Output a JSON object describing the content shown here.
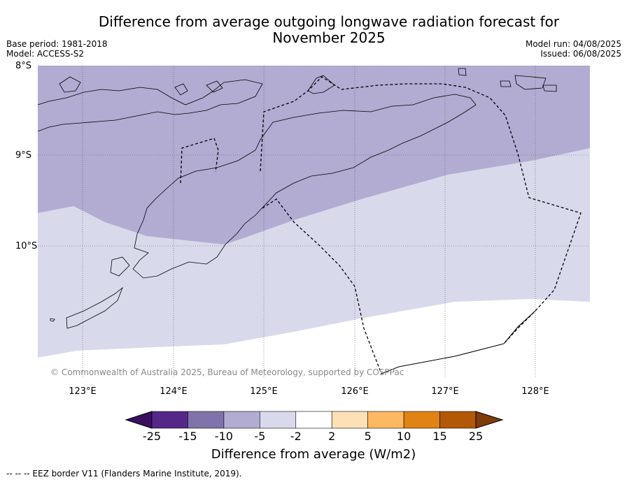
{
  "title": "Difference from average outgoing longwave radiation forecast for November 2025",
  "base_period": "Base period: 1981-2018",
  "model": "Model: ACCESS-S2",
  "model_run": "Model run: 04/08/2025",
  "issued": "Issued: 06/08/2025",
  "copyright": "© Commonwealth of Australia 2025, Bureau of Meteorology, supported by COSPPac",
  "footnote": "--  --  -- EEZ border V11 (Flanders Marine Institute, 2019).",
  "colorbar": {
    "title": "Difference from average (W/m2)",
    "tick_labels": [
      "-25",
      "-15",
      "-10",
      "-5",
      "-2",
      "2",
      "5",
      "10",
      "15",
      "25"
    ],
    "colors": [
      "#3b1060",
      "#542788",
      "#8073ac",
      "#b2abd2",
      "#d8daeb",
      "#ffffff",
      "#fee0b6",
      "#fdb863",
      "#e08214",
      "#b35806",
      "#7f3b08"
    ]
  },
  "map": {
    "lat_labels": [
      "8°S",
      "9°S",
      "10°S"
    ],
    "lon_labels": [
      "123°E",
      "124°E",
      "125°E",
      "126°E",
      "127°E",
      "128°E"
    ],
    "lat_range": [
      -11.2,
      -8.0
    ],
    "lon_range": [
      122.5,
      128.6
    ],
    "fill_classes": [
      {
        "range": "-10 to -5",
        "color": "#b2abd2"
      },
      {
        "range": "-5 to -2",
        "color": "#d8daeb"
      },
      {
        "range": "-2 to 2",
        "color": "#ffffff"
      }
    ]
  }
}
